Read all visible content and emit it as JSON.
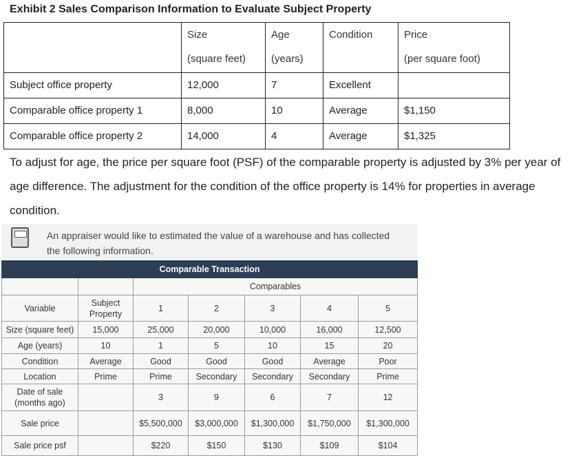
{
  "exhibit": {
    "title": "Exhibit 2 Sales Comparison Information to Evaluate Subject Property",
    "columns": [
      {
        "lines": [
          "Size",
          "(square feet)"
        ]
      },
      {
        "lines": [
          "Age",
          "(years)"
        ]
      },
      {
        "lines": [
          "Condition"
        ]
      },
      {
        "lines": [
          "Price",
          "(per square foot)"
        ]
      }
    ],
    "rows": [
      [
        "Subject office property",
        "12,000",
        "7",
        "Excellent",
        null
      ],
      [
        "Comparable office property 1",
        "8,000",
        "10",
        "Average",
        "$1,150"
      ],
      [
        "Comparable office property 2",
        "14,000",
        "4",
        "Average",
        "$1,325"
      ]
    ]
  },
  "paragraph": "To adjust for age, the price per square foot (PSF) of the comparable property is adjusted by 3% per year of age difference. The adjustment for the condition of the office property is 14% for properties in average condition.",
  "question": {
    "intro": "An appraiser would like to estimated the value of a warehouse and has collected the following information.",
    "table": {
      "title": "Comparable Transaction",
      "group_header": "Comparables",
      "headers": [
        "Variable",
        "Subject Property",
        "1",
        "2",
        "3",
        "4",
        "5"
      ],
      "rows": [
        [
          "Size (square feet)",
          "15,000",
          "25,000",
          "20,000",
          "10,000",
          "16,000",
          "12,500"
        ],
        [
          "Age (years)",
          "10",
          "1",
          "5",
          "10",
          "15",
          "20"
        ],
        [
          "Condition",
          "Average",
          "Good",
          "Good",
          "Good",
          "Average",
          "Poor"
        ],
        [
          "Location",
          "Prime",
          "Prime",
          "Secondary",
          "Secondary",
          "Secondary",
          "Prime"
        ],
        [
          "Date of sale (months ago)",
          null,
          "3",
          "9",
          "6",
          "7",
          "12"
        ],
        [
          "Sale price",
          null,
          "$5,500,000",
          "$3,000,000",
          "$1,300,000",
          "$1,750,000",
          "$1,300,000"
        ],
        [
          "Sale price psf",
          null,
          "$220",
          "$150",
          "$130",
          "$109",
          "$104"
        ]
      ]
    }
  }
}
